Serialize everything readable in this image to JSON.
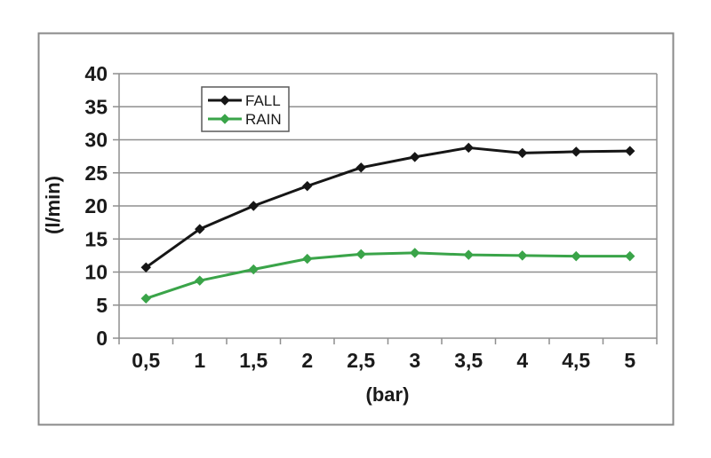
{
  "chart_data": {
    "type": "line",
    "title": "",
    "xlabel": "(bar)",
    "ylabel": "(l/min)",
    "categories": [
      "0,5",
      "1",
      "1,5",
      "2",
      "2,5",
      "3",
      "3,5",
      "4",
      "4,5",
      "5"
    ],
    "x_values": [
      0.5,
      1,
      1.5,
      2,
      2.5,
      3,
      3.5,
      4,
      4.5,
      5
    ],
    "series": [
      {
        "name": "FALL",
        "color": "#161616",
        "values": [
          10.7,
          16.5,
          20,
          23,
          25.8,
          27.4,
          28.8,
          28,
          28.2,
          28.3
        ]
      },
      {
        "name": "RAIN",
        "color": "#3aa449",
        "values": [
          6,
          8.7,
          10.4,
          12,
          12.7,
          12.9,
          12.6,
          12.5,
          12.4,
          12.4
        ]
      }
    ],
    "ylim": [
      0,
      40
    ],
    "yticks": [
      0,
      5,
      10,
      15,
      20,
      25,
      30,
      35,
      40
    ],
    "grid": "horizontal",
    "legend_position": "inside-top-left",
    "legend_entries": [
      "FALL",
      "RAIN"
    ],
    "marker": "diamond"
  },
  "colors": {
    "background": "#ffffff",
    "frame_border": "#8a8a8a",
    "grid": "#8f8f8f",
    "text": "#1a1a1a",
    "legend_border": "#5a5a5a",
    "legend_fill": "#ffffff"
  }
}
